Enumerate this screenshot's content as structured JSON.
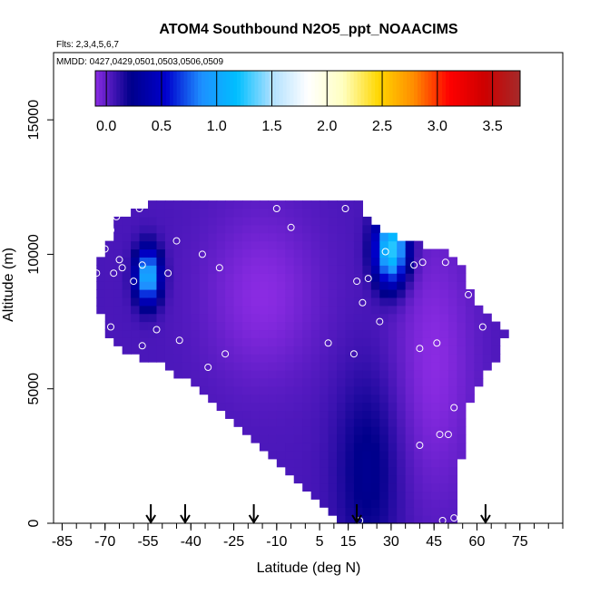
{
  "chart_data": {
    "type": "heatmap",
    "title": "ATOM4 Southbound N2O5_ppt_NOAACIMS",
    "flights_note": "Flts: 2,3,4,5,6,7",
    "dates_note": "MMDD: 0427,0429,0501,0503,0506,0509",
    "xlabel": "Latitude (deg N)",
    "ylabel": "Altitude (m)",
    "xlim": [
      -88,
      90
    ],
    "ylim": [
      0,
      17500
    ],
    "x_ticks": [
      -85,
      -70,
      -55,
      -40,
      -25,
      -10,
      5,
      15,
      30,
      45,
      60,
      75
    ],
    "x_tick_labels": [
      "-85",
      "-70",
      "-55",
      "-40",
      "-25",
      "-10",
      "5",
      "15",
      "30",
      "45",
      "60",
      "75"
    ],
    "x_minor_step": 5,
    "y_ticks": [
      0,
      5000,
      10000,
      15000
    ],
    "y_tick_labels": [
      "0",
      "5000",
      "10000",
      "15000"
    ],
    "colorbar": {
      "range": [
        -0.1,
        3.75
      ],
      "ticks": [
        0.0,
        0.5,
        1.0,
        1.5,
        2.0,
        2.5,
        3.0,
        3.5
      ],
      "tick_labels": [
        "0.0",
        "0.5",
        "1.0",
        "1.5",
        "2.0",
        "2.5",
        "3.0",
        "3.5"
      ],
      "colors": [
        "#8a2be2",
        "#00008b",
        "#0000cd",
        "#1e90ff",
        "#00bfff",
        "#b0e0ff",
        "#ffffff",
        "#ffffc0",
        "#ffd700",
        "#ff8c00",
        "#ff0000",
        "#cd0000",
        "#a52a2a"
      ]
    },
    "field": {
      "envelope": [
        [
          -73,
          9300
        ],
        [
          -70,
          10200
        ],
        [
          -66,
          11300
        ],
        [
          -58,
          11800
        ],
        [
          -40,
          12000
        ],
        [
          20,
          12000
        ],
        [
          22,
          11300
        ],
        [
          28,
          10800
        ],
        [
          38,
          10500
        ],
        [
          48,
          10100
        ],
        [
          55,
          9500
        ],
        [
          58,
          8500
        ],
        [
          66,
          7600
        ],
        [
          70,
          7000
        ],
        [
          66,
          6000
        ],
        [
          58,
          4800
        ],
        [
          56,
          3500
        ],
        [
          54,
          2000
        ],
        [
          53,
          0
        ],
        [
          12,
          0
        ],
        [
          5,
          800
        ],
        [
          -10,
          2200
        ],
        [
          -25,
          3800
        ],
        [
          -35,
          4800
        ],
        [
          -48,
          5800
        ],
        [
          -58,
          6200
        ],
        [
          -66,
          6500
        ],
        [
          -70,
          7000
        ],
        [
          -72,
          8000
        ]
      ],
      "background_value": 0.05,
      "features": [
        {
          "lat": -15,
          "alt": 8500,
          "value": -0.1,
          "sigma_lat": 14,
          "sigma_alt": 2200
        },
        {
          "lat": 45,
          "alt": 6000,
          "value": -0.1,
          "sigma_lat": 10,
          "sigma_alt": 3500
        },
        {
          "lat": -55,
          "alt": 9200,
          "value": 1.1,
          "sigma_lat": 3,
          "sigma_alt": 700
        },
        {
          "lat": 30,
          "alt": 10200,
          "value": 1.3,
          "sigma_lat": 4,
          "sigma_alt": 900
        },
        {
          "lat": 22,
          "alt": 2000,
          "value": 0.25,
          "sigma_lat": 8,
          "sigma_alt": 2500
        }
      ]
    },
    "samples": [
      [
        -73,
        9300
      ],
      [
        -70,
        10200
      ],
      [
        -68,
        10900
      ],
      [
        -66,
        11400
      ],
      [
        -58,
        11700
      ],
      [
        -65,
        9800
      ],
      [
        -67,
        9300
      ],
      [
        -64,
        9500
      ],
      [
        -60,
        9000
      ],
      [
        -57,
        9600
      ],
      [
        -48,
        9300
      ],
      [
        -45,
        10500
      ],
      [
        -68,
        7300
      ],
      [
        -73,
        6700
      ],
      [
        -57,
        6600
      ],
      [
        -52,
        7200
      ],
      [
        -55,
        5600
      ],
      [
        -50,
        5600
      ],
      [
        -44,
        6800
      ],
      [
        -34,
        5800
      ],
      [
        -28,
        6300
      ],
      [
        -30,
        9500
      ],
      [
        -36,
        10000
      ],
      [
        -10,
        11700
      ],
      [
        -5,
        11000
      ],
      [
        14,
        11700
      ],
      [
        22,
        9100
      ],
      [
        18,
        9000
      ],
      [
        20,
        8200
      ],
      [
        26,
        7500
      ],
      [
        28,
        10100
      ],
      [
        8,
        6700
      ],
      [
        17,
        6300
      ],
      [
        38,
        9600
      ],
      [
        41,
        9700
      ],
      [
        49,
        9700
      ],
      [
        57,
        8500
      ],
      [
        62,
        7300
      ],
      [
        46,
        6700
      ],
      [
        40,
        6500
      ],
      [
        52,
        4300
      ],
      [
        47,
        3300
      ],
      [
        40,
        2900
      ],
      [
        50,
        3300
      ],
      [
        48,
        100
      ],
      [
        52,
        200
      ],
      [
        19,
        100
      ]
    ],
    "flight_markers_lat": [
      -54,
      -42,
      -18,
      18,
      63
    ]
  }
}
